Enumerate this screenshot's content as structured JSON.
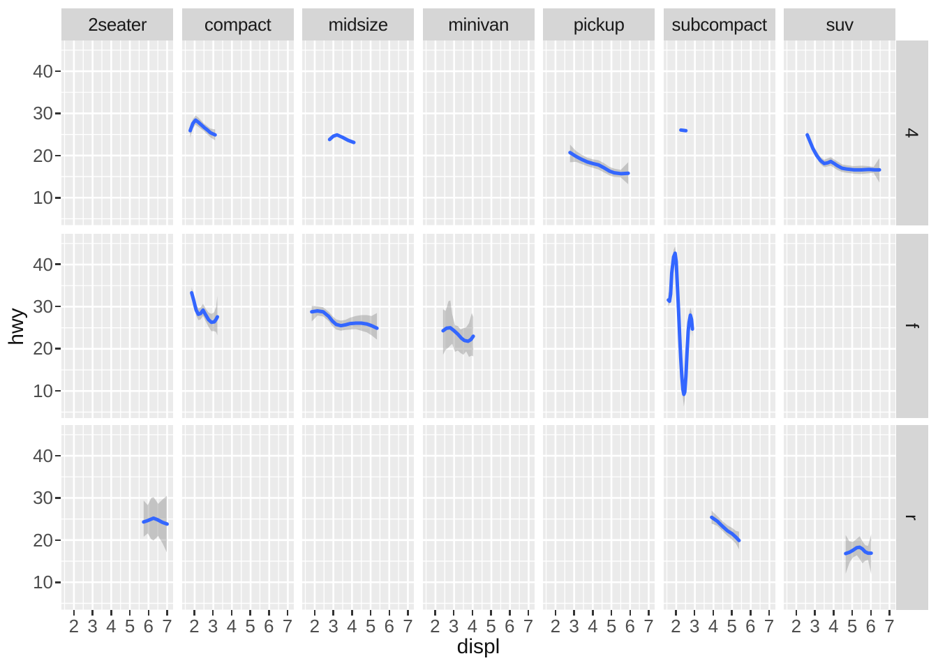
{
  "figure": {
    "background": "#FFFFFF"
  },
  "chart_data": {
    "type": "line",
    "title": "",
    "xlabel": "displ",
    "ylabel": "hwy",
    "facet_columns": [
      "2seater",
      "compact",
      "midsize",
      "minivan",
      "pickup",
      "subcompact",
      "suv"
    ],
    "facet_rows": [
      "4",
      "f",
      "r"
    ],
    "xlim": [
      1.33,
      7.33
    ],
    "ylim": [
      3.5,
      47.3
    ],
    "x_ticks": [
      2,
      3,
      4,
      5,
      6,
      7
    ],
    "y_ticks": [
      10,
      20,
      30,
      40
    ],
    "x_minor": [
      1.5,
      2.5,
      3.5,
      4.5,
      5.5,
      6.5
    ],
    "y_minor": [
      5,
      15,
      25,
      35,
      45
    ],
    "grid": "on",
    "legend": "none",
    "colors": {
      "line": "#3366FF",
      "ribbon": "rgba(120,120,120,0.35)",
      "panel_bg": "#EBEBEB",
      "strip_bg": "#D6D6D6",
      "grid": "#FFFFFF",
      "axis_text": "#4D4D4D",
      "tick_mark": "#333333",
      "strip_text": "#1A1A1A"
    },
    "panels": [
      {
        "row": "4",
        "col": "compact",
        "line": [
          [
            1.76,
            25.9
          ],
          [
            1.9,
            27.6
          ],
          [
            2.05,
            28.4
          ],
          [
            2.2,
            27.9
          ],
          [
            2.35,
            27.3
          ],
          [
            2.5,
            26.7
          ],
          [
            2.7,
            26.0
          ],
          [
            2.85,
            25.4
          ],
          [
            3.1,
            24.9
          ]
        ],
        "ribbon": [
          [
            1.76,
            24.2,
            27.0
          ],
          [
            1.9,
            26.4,
            28.6
          ],
          [
            2.05,
            27.3,
            29.5
          ],
          [
            2.2,
            26.8,
            29.0
          ],
          [
            2.5,
            25.8,
            27.6
          ],
          [
            2.85,
            24.3,
            26.4
          ],
          [
            3.1,
            23.6,
            26.2
          ]
        ]
      },
      {
        "row": "4",
        "col": "midsize",
        "line": [
          [
            2.8,
            23.8
          ],
          [
            3.0,
            24.6
          ],
          [
            3.2,
            24.9
          ],
          [
            3.5,
            24.3
          ],
          [
            3.8,
            23.6
          ],
          [
            4.1,
            23.1
          ]
        ],
        "ribbon": null
      },
      {
        "row": "4",
        "col": "pickup",
        "line": [
          [
            2.78,
            20.7
          ],
          [
            3.1,
            19.8
          ],
          [
            3.4,
            19.1
          ],
          [
            3.7,
            18.5
          ],
          [
            4.0,
            18.1
          ],
          [
            4.3,
            17.8
          ],
          [
            4.6,
            17.1
          ],
          [
            4.9,
            16.3
          ],
          [
            5.15,
            15.9
          ],
          [
            5.5,
            15.7
          ],
          [
            5.9,
            15.8
          ]
        ],
        "ribbon": [
          [
            2.78,
            18.4,
            22.6
          ],
          [
            3.1,
            18.5,
            21.1
          ],
          [
            3.4,
            18.0,
            20.2
          ],
          [
            3.7,
            17.5,
            19.5
          ],
          [
            4.0,
            17.1,
            19.1
          ],
          [
            4.3,
            16.7,
            18.9
          ],
          [
            4.6,
            16.0,
            18.2
          ],
          [
            4.9,
            15.3,
            17.3
          ],
          [
            5.15,
            14.9,
            16.9
          ],
          [
            5.5,
            14.8,
            16.6
          ],
          [
            5.9,
            13.2,
            18.4
          ]
        ]
      },
      {
        "row": "4",
        "col": "subcompact",
        "line": [
          [
            2.25,
            26.05
          ],
          [
            2.52,
            25.9
          ]
        ],
        "ribbon": null
      },
      {
        "row": "4",
        "col": "suv",
        "line": [
          [
            2.59,
            24.9
          ],
          [
            2.75,
            23.2
          ],
          [
            2.9,
            21.6
          ],
          [
            3.1,
            20.0
          ],
          [
            3.3,
            18.8
          ],
          [
            3.5,
            18.1
          ],
          [
            3.7,
            18.3
          ],
          [
            3.85,
            18.6
          ],
          [
            4.0,
            18.2
          ],
          [
            4.2,
            17.6
          ],
          [
            4.45,
            17.0
          ],
          [
            4.7,
            16.8
          ],
          [
            5.1,
            16.6
          ],
          [
            5.5,
            16.6
          ],
          [
            5.9,
            16.7
          ],
          [
            6.2,
            16.6
          ],
          [
            6.46,
            16.6
          ]
        ],
        "ribbon": [
          [
            2.59,
            24.0,
            25.8
          ],
          [
            2.9,
            20.8,
            22.4
          ],
          [
            3.3,
            18.0,
            19.6
          ],
          [
            3.5,
            17.2,
            19.0
          ],
          [
            3.85,
            17.6,
            19.6
          ],
          [
            4.2,
            16.6,
            18.6
          ],
          [
            4.45,
            16.1,
            17.9
          ],
          [
            4.7,
            15.9,
            17.7
          ],
          [
            5.1,
            15.7,
            17.5
          ],
          [
            5.5,
            15.6,
            17.6
          ],
          [
            5.9,
            15.8,
            17.5
          ],
          [
            6.15,
            15.9,
            17.3
          ],
          [
            6.46,
            13.6,
            19.4
          ]
        ]
      },
      {
        "row": "f",
        "col": "compact",
        "line": [
          [
            1.84,
            33.3
          ],
          [
            1.95,
            31.5
          ],
          [
            2.08,
            29.2
          ],
          [
            2.2,
            28.2
          ],
          [
            2.32,
            28.4
          ],
          [
            2.45,
            29.2
          ],
          [
            2.6,
            28.0
          ],
          [
            2.75,
            26.9
          ],
          [
            2.9,
            26.3
          ],
          [
            3.05,
            26.4
          ],
          [
            3.15,
            27.0
          ],
          [
            3.22,
            27.6
          ]
        ],
        "ribbon": [
          [
            1.84,
            32.0,
            34.6
          ],
          [
            1.95,
            30.2,
            32.8
          ],
          [
            2.08,
            27.9,
            30.5
          ],
          [
            2.2,
            26.8,
            29.6
          ],
          [
            2.32,
            27.0,
            29.8
          ],
          [
            2.45,
            27.8,
            30.7
          ],
          [
            2.6,
            26.5,
            29.5
          ],
          [
            2.75,
            25.2,
            28.6
          ],
          [
            2.9,
            24.2,
            28.3
          ],
          [
            3.05,
            24.2,
            28.7
          ],
          [
            3.15,
            24.0,
            30.0
          ],
          [
            3.22,
            23.2,
            32.6
          ]
        ]
      },
      {
        "row": "f",
        "col": "midsize",
        "line": [
          [
            1.84,
            28.8
          ],
          [
            2.15,
            29.0
          ],
          [
            2.45,
            28.8
          ],
          [
            2.75,
            27.7
          ],
          [
            2.95,
            26.6
          ],
          [
            3.15,
            25.8
          ],
          [
            3.4,
            25.5
          ],
          [
            3.65,
            25.7
          ],
          [
            3.9,
            26.0
          ],
          [
            4.2,
            26.1
          ],
          [
            4.5,
            26.1
          ],
          [
            4.8,
            25.9
          ],
          [
            5.05,
            25.5
          ],
          [
            5.34,
            24.9
          ]
        ],
        "ribbon": [
          [
            1.84,
            26.5,
            30.2
          ],
          [
            2.15,
            27.9,
            30.1
          ],
          [
            2.45,
            27.7,
            29.9
          ],
          [
            2.75,
            26.6,
            28.8
          ],
          [
            2.95,
            25.4,
            27.8
          ],
          [
            3.15,
            24.6,
            27.0
          ],
          [
            3.4,
            24.3,
            26.7
          ],
          [
            3.65,
            24.5,
            26.9
          ],
          [
            3.9,
            24.6,
            27.4
          ],
          [
            4.2,
            24.7,
            27.8
          ],
          [
            4.5,
            24.3,
            28.0
          ],
          [
            4.8,
            23.9,
            28.0
          ],
          [
            5.05,
            23.2,
            27.8
          ],
          [
            5.34,
            22.2,
            28.5
          ]
        ]
      },
      {
        "row": "f",
        "col": "minivan",
        "line": [
          [
            2.41,
            24.3
          ],
          [
            2.6,
            24.9
          ],
          [
            2.8,
            25.0
          ],
          [
            3.0,
            24.3
          ],
          [
            3.2,
            23.5
          ],
          [
            3.4,
            22.5
          ],
          [
            3.55,
            22.0
          ],
          [
            3.75,
            21.8
          ],
          [
            3.9,
            22.2
          ],
          [
            4.03,
            23.0
          ]
        ],
        "ribbon": [
          [
            2.41,
            18.6,
            29.4
          ],
          [
            2.55,
            19.8,
            29.0
          ],
          [
            2.7,
            20.3,
            31.3
          ],
          [
            2.8,
            20.8,
            31.5
          ],
          [
            2.9,
            21.2,
            28.2
          ],
          [
            3.05,
            19.3,
            25.6
          ],
          [
            3.2,
            19.6,
            25.4
          ],
          [
            3.35,
            19.0,
            24.6
          ],
          [
            3.5,
            18.6,
            24.9
          ],
          [
            3.65,
            19.4,
            25.1
          ],
          [
            3.8,
            18.1,
            26.1
          ],
          [
            3.95,
            18.4,
            28.5
          ],
          [
            4.03,
            18.2,
            27.6
          ]
        ]
      },
      {
        "row": "f",
        "col": "subcompact",
        "line": [
          [
            1.58,
            31.6
          ],
          [
            1.64,
            31.3
          ],
          [
            1.7,
            33.0
          ],
          [
            1.76,
            38.0
          ],
          [
            1.86,
            41.8
          ],
          [
            1.94,
            42.7
          ],
          [
            2.0,
            40.7
          ],
          [
            2.06,
            35.2
          ],
          [
            2.12,
            29.6
          ],
          [
            2.18,
            23.5
          ],
          [
            2.24,
            18.0
          ],
          [
            2.3,
            13.5
          ],
          [
            2.36,
            10.3
          ],
          [
            2.41,
            9.2
          ],
          [
            2.46,
            9.8
          ],
          [
            2.52,
            13.5
          ],
          [
            2.58,
            19.1
          ],
          [
            2.64,
            24.1
          ],
          [
            2.69,
            26.3
          ],
          [
            2.76,
            28.0
          ],
          [
            2.82,
            27.0
          ],
          [
            2.87,
            24.7
          ]
        ],
        "ribbon": [
          [
            1.58,
            30.0,
            33.2
          ],
          [
            1.7,
            31.4,
            34.6
          ],
          [
            1.76,
            36.3,
            39.7
          ],
          [
            1.86,
            40.2,
            43.5
          ],
          [
            1.94,
            41.0,
            44.3
          ],
          [
            2.0,
            39.0,
            42.4
          ],
          [
            2.06,
            33.5,
            37.0
          ],
          [
            2.12,
            27.9,
            31.3
          ],
          [
            2.18,
            21.8,
            25.2
          ],
          [
            2.24,
            16.3,
            19.7
          ],
          [
            2.3,
            11.8,
            15.2
          ],
          [
            2.36,
            8.3,
            12.1
          ],
          [
            2.41,
            6.3,
            11.2
          ],
          [
            2.46,
            7.9,
            11.8
          ],
          [
            2.52,
            11.8,
            15.3
          ],
          [
            2.58,
            17.4,
            20.8
          ],
          [
            2.64,
            22.4,
            25.8
          ],
          [
            2.69,
            24.6,
            28.0
          ],
          [
            2.76,
            26.3,
            29.8
          ],
          [
            2.82,
            25.2,
            28.8
          ],
          [
            2.87,
            22.9,
            26.5
          ]
        ]
      },
      {
        "row": "r",
        "col": "2seater",
        "line": [
          [
            5.74,
            24.3
          ],
          [
            6.0,
            24.7
          ],
          [
            6.27,
            25.2
          ],
          [
            6.5,
            24.8
          ],
          [
            6.75,
            24.2
          ],
          [
            7.0,
            23.8
          ]
        ],
        "ribbon": [
          [
            5.74,
            20.8,
            29.4
          ],
          [
            5.96,
            21.6,
            28.3
          ],
          [
            6.15,
            20.2,
            30.0
          ],
          [
            6.27,
            19.9,
            30.2
          ],
          [
            6.52,
            21.0,
            28.6
          ],
          [
            6.77,
            19.1,
            29.7
          ],
          [
            6.98,
            17.1,
            30.5
          ]
        ]
      },
      {
        "row": "r",
        "col": "subcompact",
        "line": [
          [
            3.9,
            25.4
          ],
          [
            4.2,
            24.5
          ],
          [
            4.5,
            23.2
          ],
          [
            4.75,
            22.2
          ],
          [
            5.0,
            21.5
          ],
          [
            5.2,
            20.7
          ],
          [
            5.37,
            19.9
          ]
        ],
        "ribbon": [
          [
            3.9,
            23.9,
            27.0
          ],
          [
            4.2,
            23.4,
            25.7
          ],
          [
            4.5,
            22.1,
            24.4
          ],
          [
            4.75,
            21.0,
            23.5
          ],
          [
            5.0,
            20.1,
            22.9
          ],
          [
            5.2,
            19.2,
            22.2
          ],
          [
            5.37,
            17.8,
            22.0
          ]
        ]
      },
      {
        "row": "r",
        "col": "suv",
        "line": [
          [
            4.65,
            16.8
          ],
          [
            4.85,
            17.1
          ],
          [
            5.05,
            17.6
          ],
          [
            5.25,
            18.2
          ],
          [
            5.4,
            18.3
          ],
          [
            5.55,
            17.9
          ],
          [
            5.7,
            17.2
          ],
          [
            5.85,
            16.9
          ],
          [
            6.02,
            16.9
          ]
        ],
        "ribbon": [
          [
            4.65,
            12.0,
            21.2
          ],
          [
            4.85,
            14.6,
            19.7
          ],
          [
            5.05,
            15.9,
            19.6
          ],
          [
            5.25,
            16.4,
            20.3
          ],
          [
            5.4,
            15.5,
            20.9
          ],
          [
            5.55,
            14.5,
            19.7
          ],
          [
            5.7,
            15.1,
            18.8
          ],
          [
            5.85,
            15.3,
            18.6
          ],
          [
            6.02,
            11.9,
            21.4
          ]
        ]
      }
    ]
  }
}
